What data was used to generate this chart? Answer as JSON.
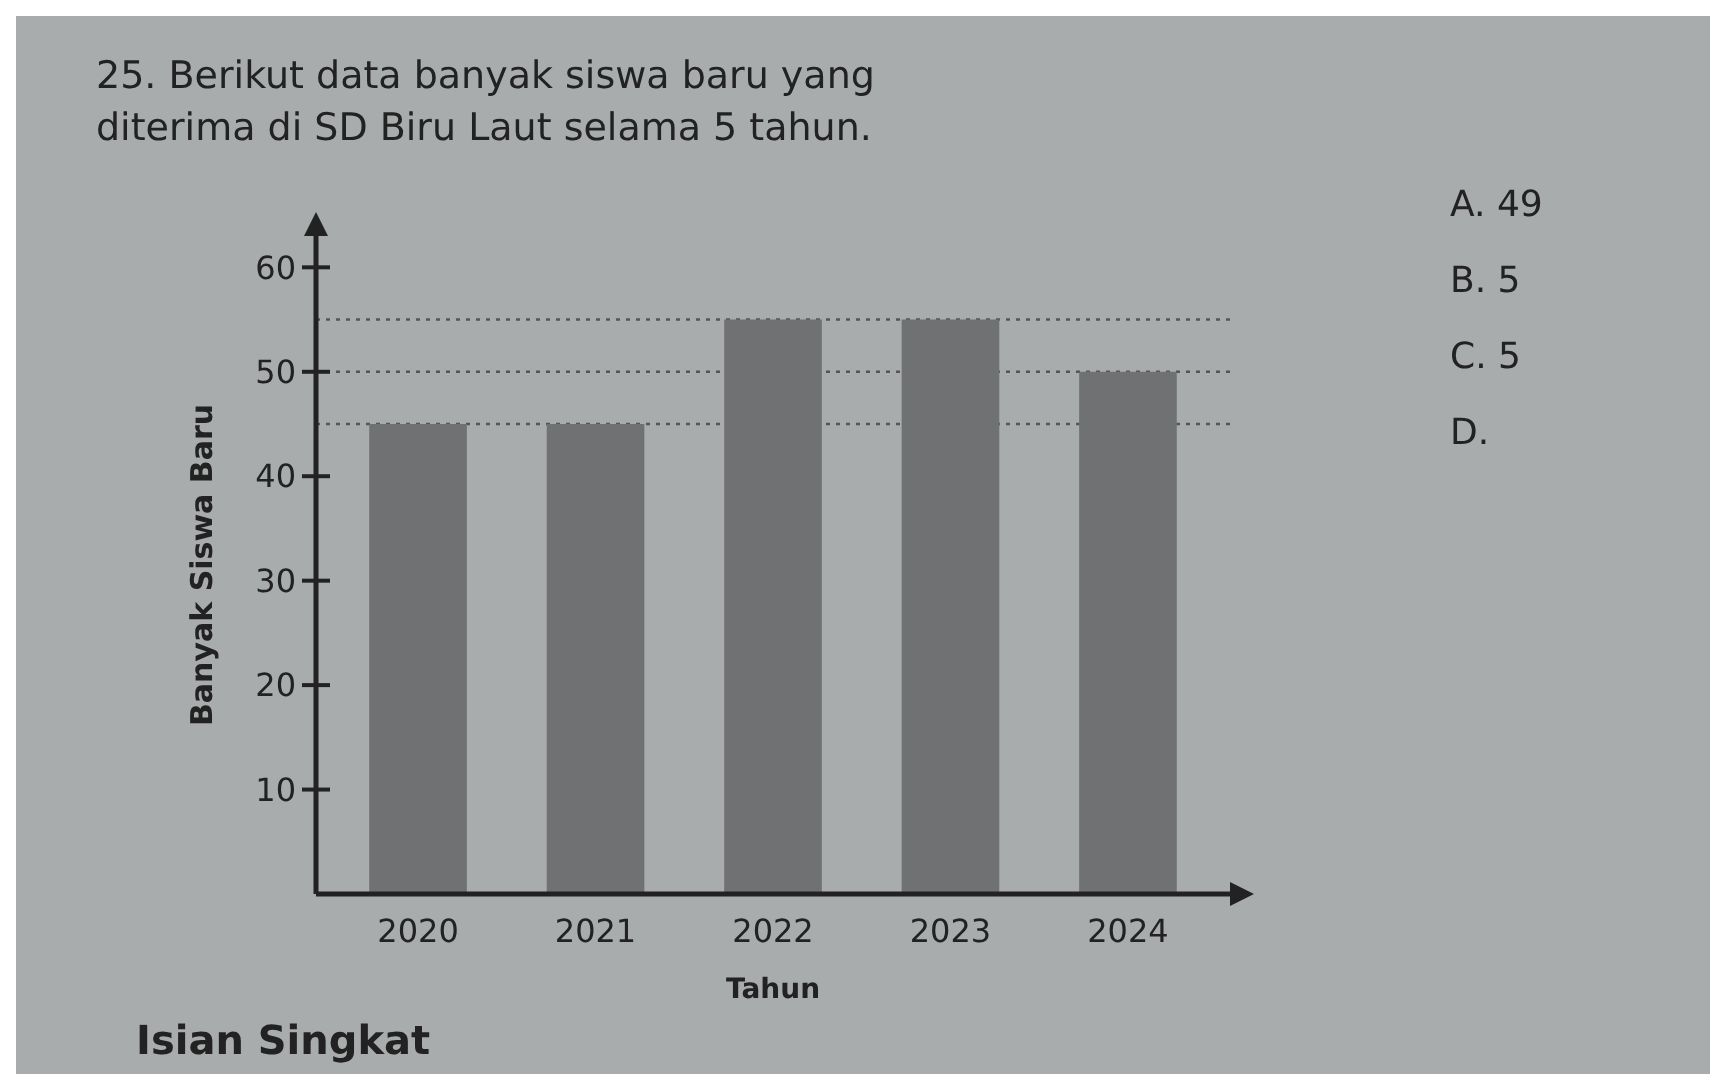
{
  "chart_data": {
    "type": "bar",
    "title": "25. Berikut data banyak siswa baru yang diterima di SD Biru Laut selama 5 tahun.",
    "xlabel": "Tahun",
    "ylabel": "Banyak Siswa Baru",
    "categories": [
      "2020",
      "2021",
      "2022",
      "2023",
      "2024"
    ],
    "values": [
      45,
      45,
      55,
      55,
      50
    ],
    "color": "#6f7172",
    "ylim": [
      0,
      63
    ],
    "yticks": [
      10,
      20,
      30,
      40,
      50,
      60
    ],
    "grid": false,
    "ref_lines": [
      {
        "axis": "y",
        "value": 45,
        "line_style": "dotted",
        "color": "#555555"
      },
      {
        "axis": "y",
        "value": 50,
        "line_style": "dotted",
        "color": "#555555"
      },
      {
        "axis": "y",
        "value": 55,
        "line_style": "dotted",
        "color": "#555555"
      }
    ],
    "annotations": [
      "A. 49",
      "B. 5",
      "C. 5",
      "D.",
      "Isian Singkat"
    ]
  }
}
